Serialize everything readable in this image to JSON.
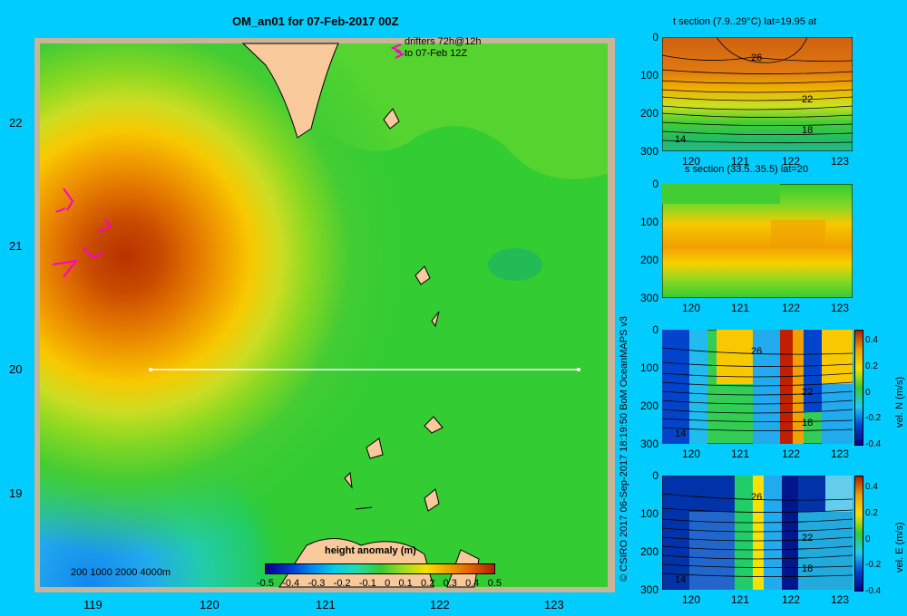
{
  "main_map": {
    "title": "OM_an01 for 07-Feb-2017 00Z",
    "drifters_line1": "drifters 72h@12h",
    "drifters_line2": "to 07-Feb 12Z",
    "depth_legend": "200  1000  2000  4000m",
    "lon_ticks": [
      "119",
      "120",
      "121",
      "122",
      "123"
    ],
    "lat_ticks": [
      "22",
      "21",
      "20",
      "19"
    ],
    "colorbar_title": "height anomaly (m)",
    "colorbar_ticks": [
      "-0.5",
      "-0.4",
      "-0.3",
      "-0.2",
      "-0.1",
      "0",
      "0.1",
      "0.2",
      "0.3",
      "0.4",
      "0.5"
    ],
    "colors": {
      "land": "#f7c99b",
      "sea": "#33cc33",
      "eddy_center": "#b83200"
    }
  },
  "panels": [
    {
      "title": "t section (7.9..29°C) lat=19.95 at",
      "contours": [
        "26",
        "22",
        "18",
        "14"
      ]
    },
    {
      "title": "s section (33.5..35.5) lat=20",
      "contours": []
    },
    {
      "title": "",
      "contours": [
        "26",
        "22",
        "18",
        "14"
      ],
      "cb_label": "vel. N  (m/s)",
      "cb_ticks": [
        "0.4",
        "0.2",
        "0",
        "-0.2",
        "-0.4"
      ]
    },
    {
      "title": "",
      "contours": [
        "26",
        "22",
        "18",
        "14"
      ],
      "cb_label": "vel. E  (m/s)",
      "cb_ticks": [
        "0.4",
        "0.2",
        "0",
        "-0.2",
        "-0.4"
      ]
    }
  ],
  "panel_x_ticks": [
    "120",
    "121",
    "122",
    "123"
  ],
  "panel_y_ticks": [
    "0",
    "100",
    "200",
    "300"
  ],
  "credit": "© CSIRO 2017   06-Sep-2017 18:19:50 BoM OceanMAPS v3"
}
